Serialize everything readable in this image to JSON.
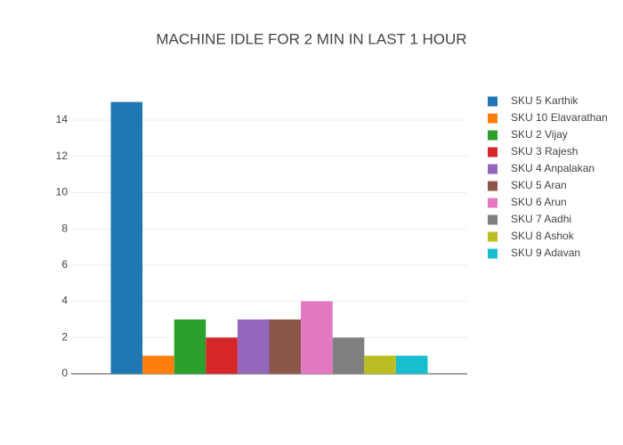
{
  "chart_data": {
    "type": "bar",
    "title": "MACHINE IDLE FOR 2 MIN IN LAST 1 HOUR",
    "categories": [
      null
    ],
    "series": [
      {
        "name": "SKU 5 Karthik",
        "color": "#1f77b4",
        "values": [
          15
        ]
      },
      {
        "name": "SKU 10 Elavarathan",
        "color": "#ff7f0e",
        "values": [
          1
        ]
      },
      {
        "name": "SKU 2 Vijay",
        "color": "#2ca02c",
        "values": [
          3
        ]
      },
      {
        "name": "SKU 3 Rajesh",
        "color": "#d62728",
        "values": [
          2
        ]
      },
      {
        "name": "SKU 4 Anpalakan",
        "color": "#9467bd",
        "values": [
          3
        ]
      },
      {
        "name": "SKU 5 Aran",
        "color": "#8c564b",
        "values": [
          3
        ]
      },
      {
        "name": "SKU 6 Arun",
        "color": "#e377c2",
        "values": [
          4
        ]
      },
      {
        "name": "SKU 7 Aadhi",
        "color": "#7f7f7f",
        "values": [
          2
        ]
      },
      {
        "name": "SKU 8 Ashok",
        "color": "#bcbd22",
        "values": [
          1
        ]
      },
      {
        "name": "SKU 9 Adavan",
        "color": "#17becf",
        "values": [
          1
        ]
      }
    ],
    "ylim": [
      0,
      15.79
    ],
    "yticks": [
      0,
      2,
      4,
      6,
      8,
      10,
      12,
      14
    ],
    "grid": true,
    "legend": "right"
  }
}
